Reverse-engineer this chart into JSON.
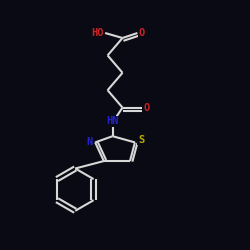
{
  "bg_color": "#0a0a14",
  "atom_colors": {
    "O": "#cc2222",
    "N": "#2222cc",
    "S": "#bbaa00",
    "C": "#e8e8e8"
  },
  "bond_color": "#d8d8d8",
  "bond_width": 1.5,
  "bond_color_dark": "#c8c8c8"
}
